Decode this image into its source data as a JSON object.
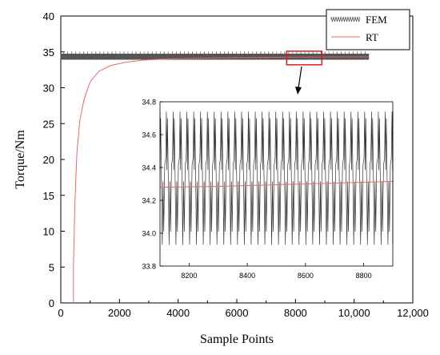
{
  "chart_data": {
    "type": "line",
    "xlabel": "Sample Points",
    "ylabel": "Torque/Nm",
    "xlim": [
      0,
      12000
    ],
    "ylim": [
      0,
      40
    ],
    "x_ticks": [
      0,
      2000,
      4000,
      6000,
      8000,
      10000,
      12000
    ],
    "x_tick_labels": [
      "0",
      "2000",
      "4000",
      "6000",
      "8000",
      "10,000",
      "12,000"
    ],
    "y_ticks": [
      0,
      5,
      10,
      15,
      20,
      25,
      30,
      35,
      40
    ],
    "y_tick_labels": [
      "0",
      "5",
      "10",
      "15",
      "20",
      "25",
      "30",
      "35",
      "40"
    ],
    "grid": false,
    "legend": {
      "position": "top-right"
    },
    "series": [
      {
        "name": "FEM",
        "color": "#555555",
        "x_range": [
          0,
          10500
        ],
        "mean": 34.3,
        "amplitude": 0.45
      },
      {
        "name": "RT",
        "color": "#e8686a",
        "x": [
          430,
          430,
          480,
          550,
          650,
          800,
          1000,
          1300,
          1700,
          2200,
          2800,
          3500,
          4500,
          6000,
          8000,
          10000,
          10500
        ],
        "y": [
          0,
          5,
          14,
          21,
          25.5,
          28.5,
          30.8,
          32.3,
          33.1,
          33.55,
          33.85,
          34.0,
          34.12,
          34.2,
          34.27,
          34.3,
          34.3
        ]
      }
    ],
    "zoom_region": {
      "x": [
        7700,
        8900
      ],
      "y": [
        33.2,
        35.1
      ]
    },
    "inset": {
      "xlim": [
        8100,
        8900
      ],
      "ylim": [
        33.8,
        34.8
      ],
      "x_ticks": [
        8200,
        8400,
        8600,
        8800
      ],
      "x_tick_labels": [
        "8200",
        "8400",
        "8600",
        "8800"
      ],
      "y_ticks": [
        33.8,
        34.0,
        34.2,
        34.4,
        34.6,
        34.8
      ],
      "y_tick_labels": [
        "33.8",
        "34.0",
        "34.2",
        "34.4",
        "34.6",
        "34.8"
      ],
      "fem_period": 23.5,
      "fem_min": 33.93,
      "fem_max": 34.74,
      "rt": {
        "x": [
          8100,
          8300,
          8500,
          8700,
          8900
        ],
        "y": [
          34.28,
          34.285,
          34.295,
          34.305,
          34.315
        ]
      }
    },
    "annotation_color": "#e31a1c"
  }
}
